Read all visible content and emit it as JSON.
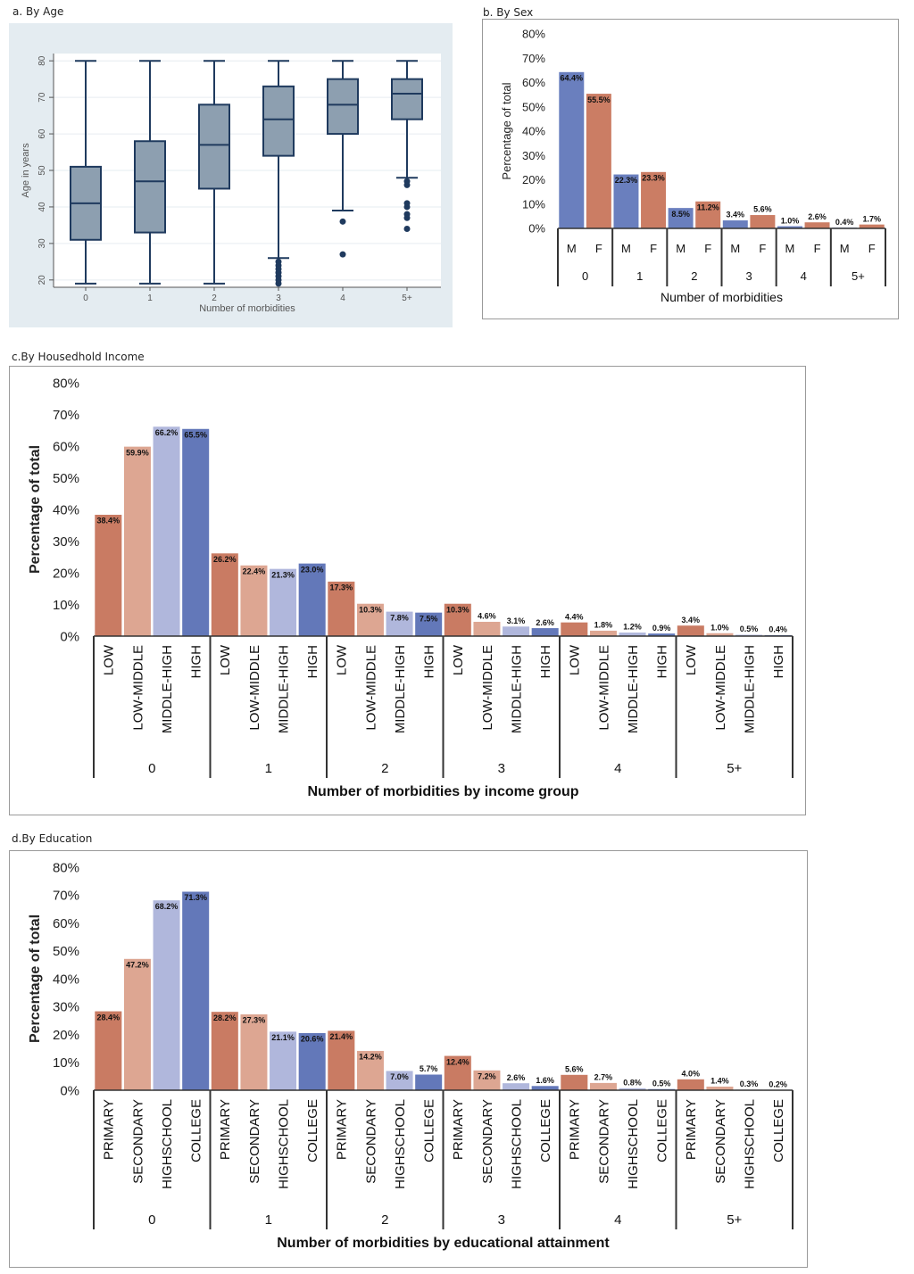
{
  "panels": {
    "a": {
      "title": "a. By Age"
    },
    "b": {
      "title": "b. By Sex"
    },
    "c": {
      "title": "c.By Housedhold Income"
    },
    "d": {
      "title": "d.By Education"
    }
  },
  "colors": {
    "a_bg": "#e4ecf1",
    "box_fill": "#8d9fb0",
    "box_line": "#1f3a5e",
    "male": "#6a7fbe",
    "female": "#cb7d64",
    "low": "#c97b63",
    "low_middle": "#dda692",
    "middle_high": "#b0b7dc",
    "high": "#6378b9"
  },
  "chart_data": [
    {
      "id": "a",
      "type": "box",
      "xlabel": "Number of morbidities",
      "ylabel": "Age in years",
      "ylim": [
        18,
        82
      ],
      "yticks": [
        "20",
        "30",
        "40",
        "50",
        "60",
        "70",
        "80"
      ],
      "grid": true,
      "categories": [
        "0",
        "1",
        "2",
        "3",
        "4",
        "5+"
      ],
      "boxes": [
        {
          "min": 19,
          "q1": 31,
          "median": 41,
          "q3": 51,
          "max": 80,
          "outliers": []
        },
        {
          "min": 19,
          "q1": 33,
          "median": 47,
          "q3": 58,
          "max": 80,
          "outliers": []
        },
        {
          "min": 19,
          "q1": 45,
          "median": 57,
          "q3": 68,
          "max": 80,
          "outliers": []
        },
        {
          "min": 26,
          "q1": 54,
          "median": 64,
          "q3": 73,
          "max": 80,
          "outliers": [
            19,
            20,
            21,
            22,
            23,
            24,
            25
          ]
        },
        {
          "min": 39,
          "q1": 60,
          "median": 68,
          "q3": 75,
          "max": 80,
          "outliers": [
            27,
            36
          ]
        },
        {
          "min": 48,
          "q1": 64,
          "median": 71,
          "q3": 75,
          "max": 80,
          "outliers": [
            34,
            37,
            38,
            40,
            41,
            46,
            47
          ]
        }
      ]
    },
    {
      "id": "b",
      "type": "bar",
      "xlabel": "Number of morbidities",
      "ylabel": "Percentage of total",
      "ylim": [
        0,
        80
      ],
      "yticks": [
        "0%",
        "10%",
        "20%",
        "30%",
        "40%",
        "50%",
        "60%",
        "70%",
        "80%"
      ],
      "categories": [
        "0",
        "1",
        "2",
        "3",
        "4",
        "5+"
      ],
      "groups": [
        "M",
        "F"
      ],
      "series": [
        {
          "values": [
            64.4,
            22.3,
            8.5,
            3.4,
            1.0,
            0.4
          ],
          "labels": [
            "64.4%",
            "22.3%",
            "8.5%",
            "3.4%",
            "1.0%",
            "0.4%"
          ]
        },
        {
          "values": [
            55.5,
            23.3,
            11.2,
            5.6,
            2.6,
            1.7
          ],
          "labels": [
            "55.5%",
            "23.3%",
            "11.2%",
            "5.6%",
            "2.6%",
            "1.7%"
          ]
        }
      ]
    },
    {
      "id": "c",
      "type": "bar",
      "xlabel": "Number of morbidities by income group",
      "ylabel": "Percentage of total",
      "ylim": [
        0,
        80
      ],
      "yticks": [
        "0%",
        "10%",
        "20%",
        "30%",
        "40%",
        "50%",
        "60%",
        "70%",
        "80%"
      ],
      "categories": [
        "0",
        "1",
        "2",
        "3",
        "4",
        "5+"
      ],
      "groups": [
        "LOW",
        "LOW-MIDDLE",
        "MIDDLE-HIGH",
        "HIGH"
      ],
      "series": [
        {
          "values": [
            38.4,
            26.2,
            17.3,
            10.3,
            4.4,
            3.4
          ],
          "labels": [
            "38.4%",
            "26.2%",
            "17.3%",
            "10.3%",
            "4.4%",
            "3.4%"
          ]
        },
        {
          "values": [
            59.9,
            22.4,
            10.3,
            4.6,
            1.8,
            1.0
          ],
          "labels": [
            "59.9%",
            "22.4%",
            "10.3%",
            "4.6%",
            "1.8%",
            "1.0%"
          ]
        },
        {
          "values": [
            66.2,
            21.3,
            7.8,
            3.1,
            1.2,
            0.5
          ],
          "labels": [
            "66.2%",
            "21.3%",
            "7.8%",
            "3.1%",
            "1.2%",
            "0.5%"
          ]
        },
        {
          "values": [
            65.5,
            23.0,
            7.5,
            2.6,
            0.9,
            0.4
          ],
          "labels": [
            "65.5%",
            "23.0%",
            "7.5%",
            "2.6%",
            "0.9%",
            "0.4%"
          ]
        }
      ]
    },
    {
      "id": "d",
      "type": "bar",
      "xlabel": "Number of morbidities by educational attainment",
      "ylabel": "Percentage of total",
      "ylim": [
        0,
        80
      ],
      "yticks": [
        "0%",
        "10%",
        "20%",
        "30%",
        "40%",
        "50%",
        "60%",
        "70%",
        "80%"
      ],
      "categories": [
        "0",
        "1",
        "2",
        "3",
        "4",
        "5+"
      ],
      "groups": [
        "PRIMARY",
        "SECONDARY",
        "HIGHSCHOOL",
        "COLLEGE"
      ],
      "series": [
        {
          "values": [
            28.4,
            28.2,
            21.4,
            12.4,
            5.6,
            4.0
          ],
          "labels": [
            "28.4%",
            "28.2%",
            "21.4%",
            "12.4%",
            "5.6%",
            "4.0%"
          ]
        },
        {
          "values": [
            47.2,
            27.3,
            14.2,
            7.2,
            2.7,
            1.4
          ],
          "labels": [
            "47.2%",
            "27.3%",
            "14.2%",
            "7.2%",
            "2.7%",
            "1.4%"
          ]
        },
        {
          "values": [
            68.2,
            21.1,
            7.0,
            2.6,
            0.8,
            0.3
          ],
          "labels": [
            "68.2%",
            "21.1%",
            "7.0%",
            "2.6%",
            "0.8%",
            "0.3%"
          ]
        },
        {
          "values": [
            71.3,
            20.6,
            5.7,
            1.6,
            0.5,
            0.2
          ],
          "labels": [
            "71.3%",
            "20.6%",
            "5.7%",
            "1.6%",
            "0.5%",
            "0.2%"
          ]
        }
      ]
    }
  ]
}
